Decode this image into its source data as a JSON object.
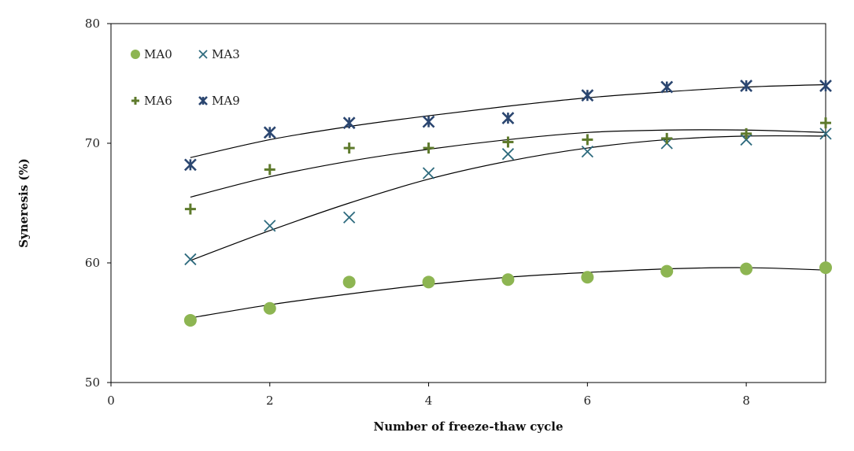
{
  "chart_data": {
    "type": "scatter",
    "title": "",
    "xlabel": "Number of freeze-thaw cycle",
    "ylabel": "Syneresis (%)",
    "xlim": [
      0,
      9
    ],
    "ylim": [
      50,
      80
    ],
    "xticks": [
      0,
      2,
      4,
      6,
      8
    ],
    "yticks": [
      50,
      60,
      70,
      80
    ],
    "grid": false,
    "legend_position": "top-left",
    "x": [
      1,
      2,
      3,
      4,
      5,
      6,
      7,
      8,
      9
    ],
    "series": [
      {
        "name": "MA0",
        "marker": "circle",
        "color": "#8db552",
        "values": [
          55.2,
          56.2,
          58.4,
          58.4,
          58.6,
          58.8,
          59.3,
          59.5,
          59.6
        ],
        "trend": [
          55.4,
          56.5,
          57.4,
          58.2,
          58.8,
          59.2,
          59.5,
          59.6,
          59.4
        ]
      },
      {
        "name": "MA3",
        "marker": "x",
        "color": "#2e6b7e",
        "values": [
          60.3,
          63.1,
          63.8,
          67.5,
          69.1,
          69.3,
          70.0,
          70.3,
          70.8
        ],
        "trend": [
          60.2,
          62.7,
          65.0,
          67.0,
          68.5,
          69.6,
          70.3,
          70.6,
          70.6
        ]
      },
      {
        "name": "MA6",
        "marker": "plus",
        "color": "#5e7a2c",
        "values": [
          64.5,
          67.8,
          69.6,
          69.6,
          70.1,
          70.3,
          70.4,
          70.8,
          71.7
        ],
        "trend": [
          65.5,
          67.2,
          68.5,
          69.5,
          70.3,
          70.9,
          71.1,
          71.1,
          70.9
        ]
      },
      {
        "name": "MA9",
        "marker": "asterisk",
        "color": "#2b4670",
        "values": [
          68.2,
          70.9,
          71.7,
          71.8,
          72.1,
          74.0,
          74.7,
          74.8,
          74.8
        ],
        "trend": [
          68.8,
          70.3,
          71.4,
          72.3,
          73.1,
          73.8,
          74.3,
          74.7,
          74.9
        ]
      }
    ]
  }
}
